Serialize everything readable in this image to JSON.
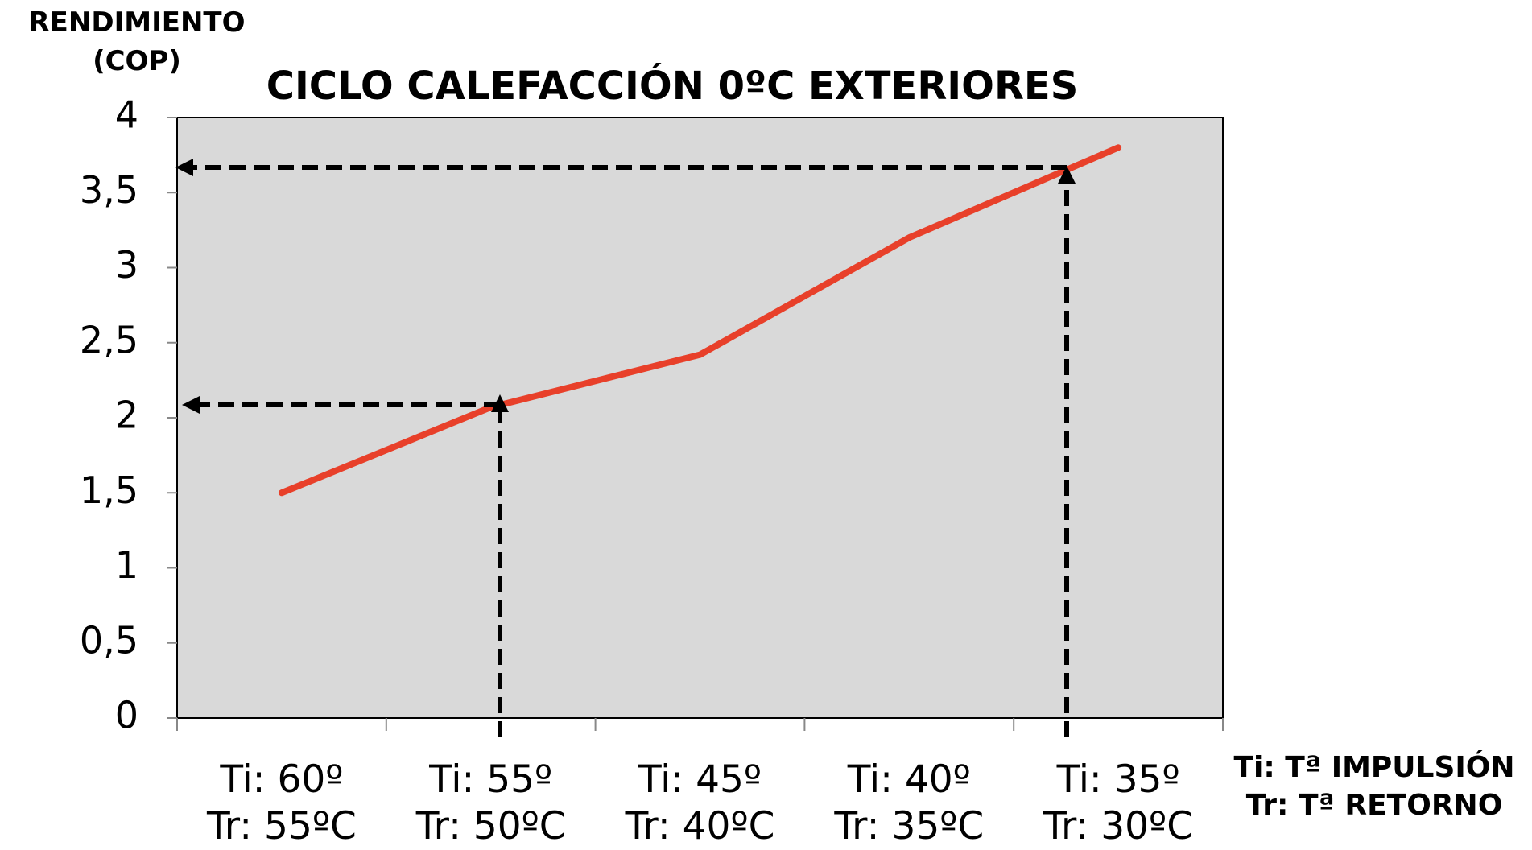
{
  "chart_data": {
    "type": "line",
    "title": "CICLO CALEFACCIÓN 0ºC EXTERIORES",
    "y_label": "RENDIMIENTO\n(COP)",
    "note": "Ti: Tª IMPULSIÓN\nTr: Tª RETORNO",
    "categories": [
      "Ti: 60º\nTr: 55ºC",
      "Ti: 55º\nTr: 50ºC",
      "Ti: 45º\nTr: 40ºC",
      "Ti: 40º\nTr: 35ºC",
      "Ti: 35º\nTr: 30ºC"
    ],
    "series": [
      {
        "name": "COP",
        "color": "#e8402a",
        "values": [
          1.5,
          2.07,
          2.42,
          3.2,
          3.8
        ]
      }
    ],
    "ylim": [
      0,
      4
    ],
    "yticks": [
      0,
      {
        "value": 0.5,
        "label": "0,5"
      },
      1,
      {
        "value": 1.5,
        "label": "1,5"
      },
      2,
      {
        "value": 2.5,
        "label": "2,5"
      },
      3,
      {
        "value": 3.5,
        "label": "3,5"
      },
      4
    ],
    "grid": false
  }
}
